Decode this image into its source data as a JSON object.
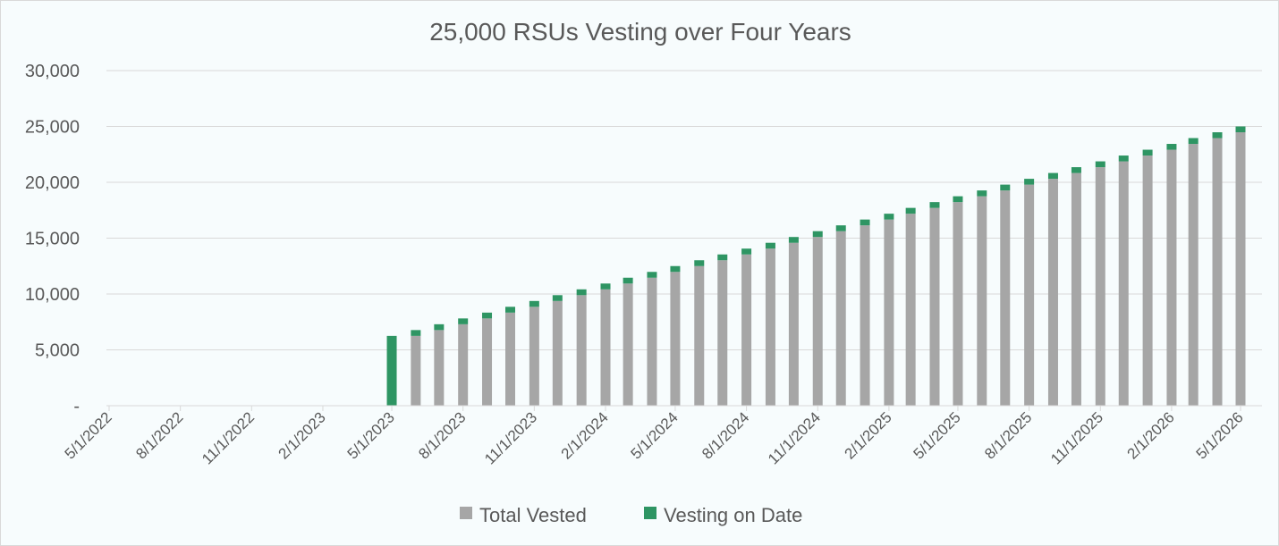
{
  "chart_data": {
    "type": "bar",
    "stacked": true,
    "title": "25,000 RSUs Vesting over Four Years",
    "xlabel": "",
    "ylabel": "",
    "ylim": [
      0,
      30000
    ],
    "yticks": [
      0,
      5000,
      10000,
      15000,
      20000,
      25000,
      30000
    ],
    "ytick_labels": [
      "-",
      "5,000",
      "10,000",
      "15,000",
      "20,000",
      "25,000",
      "30,000"
    ],
    "x_start": "5/1/2022",
    "x_end": "5/1/2026",
    "xtick_labels": [
      "5/1/2022",
      "8/1/2022",
      "11/1/2022",
      "2/1/2023",
      "5/1/2023",
      "8/1/2023",
      "11/1/2023",
      "2/1/2024",
      "5/1/2024",
      "8/1/2024",
      "11/1/2024",
      "2/1/2025",
      "5/1/2025",
      "8/1/2025",
      "11/1/2025",
      "2/1/2026",
      "5/1/2026"
    ],
    "categories": [
      "5/1/2022",
      "6/1/2022",
      "7/1/2022",
      "8/1/2022",
      "9/1/2022",
      "10/1/2022",
      "11/1/2022",
      "12/1/2022",
      "1/1/2023",
      "2/1/2023",
      "3/1/2023",
      "4/1/2023",
      "5/1/2023",
      "6/1/2023",
      "7/1/2023",
      "8/1/2023",
      "9/1/2023",
      "10/1/2023",
      "11/1/2023",
      "12/1/2023",
      "1/1/2024",
      "2/1/2024",
      "3/1/2024",
      "4/1/2024",
      "5/1/2024",
      "6/1/2024",
      "7/1/2024",
      "8/1/2024",
      "9/1/2024",
      "10/1/2024",
      "11/1/2024",
      "12/1/2024",
      "1/1/2025",
      "2/1/2025",
      "3/1/2025",
      "4/1/2025",
      "5/1/2025",
      "6/1/2025",
      "7/1/2025",
      "8/1/2025",
      "9/1/2025",
      "10/1/2025",
      "11/1/2025",
      "12/1/2025",
      "1/1/2026",
      "2/1/2026",
      "3/1/2026",
      "4/1/2026",
      "5/1/2026"
    ],
    "series": [
      {
        "name": "Total Vested",
        "color": "#a6a6a6",
        "values": [
          0,
          0,
          0,
          0,
          0,
          0,
          0,
          0,
          0,
          0,
          0,
          0,
          0,
          6250,
          6771,
          7292,
          7813,
          8333,
          8854,
          9375,
          9896,
          10417,
          10938,
          11458,
          11979,
          12500,
          13021,
          13542,
          14063,
          14583,
          15104,
          15625,
          16146,
          16667,
          17188,
          17708,
          18229,
          18750,
          19271,
          19792,
          20313,
          20833,
          21354,
          21875,
          22396,
          22917,
          23438,
          23958,
          24479
        ]
      },
      {
        "name": "Vesting on Date",
        "color": "#2e9563",
        "values": [
          0,
          0,
          0,
          0,
          0,
          0,
          0,
          0,
          0,
          0,
          0,
          0,
          6250,
          521,
          521,
          521,
          521,
          521,
          521,
          521,
          521,
          521,
          521,
          521,
          521,
          521,
          521,
          521,
          521,
          521,
          521,
          521,
          521,
          521,
          521,
          521,
          521,
          521,
          521,
          521,
          521,
          521,
          521,
          521,
          521,
          521,
          521,
          521,
          521
        ]
      }
    ],
    "gridlines": true,
    "legend_position": "bottom"
  }
}
